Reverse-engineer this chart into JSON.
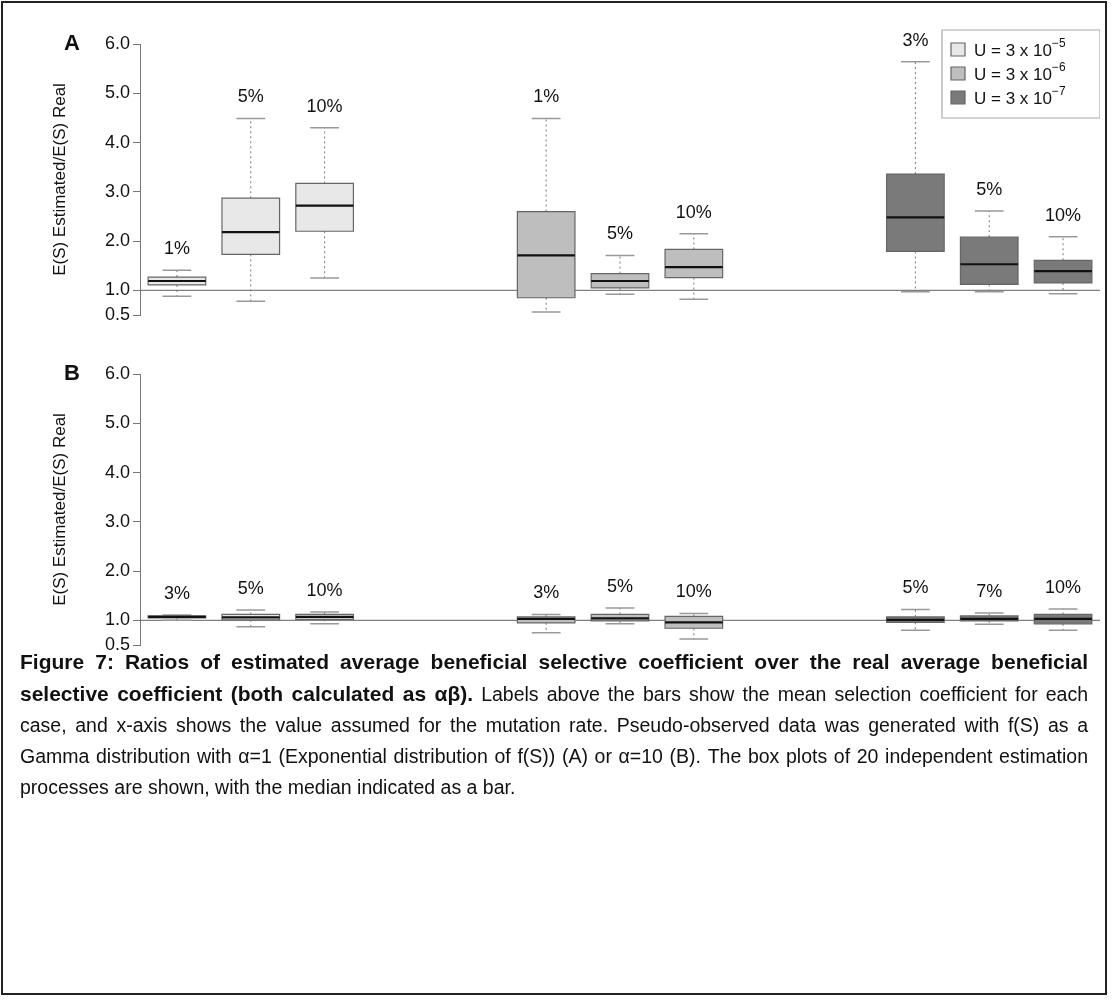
{
  "chart_data": [
    {
      "type": "box",
      "title": "A",
      "ylabel": "E(S) Estimated/E(S) Real",
      "categories": [
        null,
        null,
        null,
        null,
        null,
        null,
        null,
        null,
        null,
        null,
        null,
        null,
        null
      ],
      "ylim": [
        0.5,
        6.0
      ],
      "yticks": [
        {
          "value": 0.5,
          "label": "0.5"
        },
        {
          "value": 1,
          "label": "1.0"
        },
        {
          "value": 2,
          "label": "2.0"
        },
        {
          "value": 3,
          "label": "3.0"
        },
        {
          "value": 4,
          "label": "4.0"
        },
        {
          "value": 5,
          "label": "5.0"
        },
        {
          "value": 6,
          "label": "6.0"
        }
      ],
      "ref_lines": [
        {
          "axis": "y",
          "value": 1.0,
          "color": "#808080"
        }
      ],
      "legend": "top right",
      "series": [
        {
          "name": "U = 3 x 10$^{−5}$",
          "color": "#e8e8e8",
          "value_labels": [
            "1%",
            "5%",
            "10%",
            null,
            null,
            null,
            null,
            null,
            null,
            null,
            null,
            null,
            null
          ],
          "boxes": [
            {
              "low": 0.88,
              "q1": 1.11,
              "median": 1.19,
              "q3": 1.27,
              "high": 1.41
            },
            {
              "low": 0.78,
              "q1": 1.73,
              "median": 2.18,
              "q3": 2.87,
              "high": 4.49
            },
            {
              "low": 1.25,
              "q1": 2.2,
              "median": 2.72,
              "q3": 3.17,
              "high": 4.3
            },
            null,
            null,
            null,
            null,
            null,
            null,
            null,
            null,
            null,
            null
          ]
        },
        {
          "name": "U = 3 x 10$^{−6}$",
          "color": "#bebebe",
          "value_labels": [
            null,
            null,
            null,
            null,
            null,
            "1%",
            "5%",
            "10%",
            null,
            null,
            null,
            null,
            null
          ],
          "boxes": [
            null,
            null,
            null,
            null,
            null,
            {
              "low": 0.56,
              "q1": 0.85,
              "median": 1.71,
              "q3": 2.6,
              "high": 4.49
            },
            {
              "low": 0.92,
              "q1": 1.05,
              "median": 1.19,
              "q3": 1.34,
              "high": 1.71
            },
            {
              "low": 0.82,
              "q1": 1.26,
              "median": 1.47,
              "q3": 1.83,
              "high": 2.15
            },
            null,
            null,
            null,
            null,
            null
          ]
        },
        {
          "name": "U = 3 x 10$^{−7}$",
          "color": "#7a7a7a",
          "value_labels": [
            null,
            null,
            null,
            null,
            null,
            null,
            null,
            null,
            null,
            null,
            "3%",
            "5%",
            "10%"
          ],
          "boxes": [
            null,
            null,
            null,
            null,
            null,
            null,
            null,
            null,
            null,
            null,
            {
              "low": 0.97,
              "q1": 1.79,
              "median": 2.48,
              "q3": 3.36,
              "high": 5.64
            },
            {
              "low": 0.97,
              "q1": 1.12,
              "median": 1.53,
              "q3": 2.08,
              "high": 2.61
            },
            {
              "low": 0.93,
              "q1": 1.15,
              "median": 1.39,
              "q3": 1.61,
              "high": 2.09
            }
          ]
        }
      ]
    },
    {
      "type": "box",
      "title": "B",
      "ylabel": "E(S) Estimated/E(S) Real",
      "categories": [
        null,
        null,
        null,
        null,
        null,
        null,
        null,
        null,
        null,
        null,
        null,
        null,
        null
      ],
      "ylim": [
        0.5,
        6.0
      ],
      "yticks": [
        {
          "value": 0.5,
          "label": "0.5"
        },
        {
          "value": 1,
          "label": "1.0"
        },
        {
          "value": 2,
          "label": "2.0"
        },
        {
          "value": 3,
          "label": "3.0"
        },
        {
          "value": 4,
          "label": "4.0"
        },
        {
          "value": 5,
          "label": "5.0"
        },
        {
          "value": 6,
          "label": "6.0"
        }
      ],
      "ref_lines": [
        {
          "axis": "y",
          "value": 1.0,
          "color": "#808080"
        }
      ],
      "series": [
        {
          "color": "#e8e8e8",
          "value_labels": [
            "3%",
            "5%",
            "10%",
            null,
            null,
            null,
            null,
            null,
            null,
            null,
            null,
            null,
            null
          ],
          "boxes": [
            {
              "low": 1.0,
              "q1": 1.05,
              "median": 1.07,
              "q3": 1.09,
              "high": 1.11
            },
            {
              "low": 0.87,
              "q1": 1.01,
              "median": 1.06,
              "q3": 1.12,
              "high": 1.21
            },
            {
              "low": 0.93,
              "q1": 1.02,
              "median": 1.07,
              "q3": 1.12,
              "high": 1.17
            },
            null,
            null,
            null,
            null,
            null,
            null,
            null,
            null,
            null,
            null
          ]
        },
        {
          "color": "#bebebe",
          "value_labels": [
            null,
            null,
            null,
            null,
            null,
            "3%",
            "5%",
            "10%",
            null,
            null,
            null,
            null,
            null
          ],
          "boxes": [
            null,
            null,
            null,
            null,
            null,
            {
              "low": 0.75,
              "q1": 0.95,
              "median": 1.03,
              "q3": 1.07,
              "high": 1.12
            },
            {
              "low": 0.93,
              "q1": 0.99,
              "median": 1.04,
              "q3": 1.12,
              "high": 1.25
            },
            {
              "low": 0.62,
              "q1": 0.84,
              "median": 0.96,
              "q3": 1.08,
              "high": 1.14
            },
            null,
            null,
            null,
            null,
            null
          ]
        },
        {
          "color": "#7a7a7a",
          "value_labels": [
            null,
            null,
            null,
            null,
            null,
            null,
            null,
            null,
            null,
            null,
            "5%",
            "7%",
            "10%"
          ],
          "boxes": [
            null,
            null,
            null,
            null,
            null,
            null,
            null,
            null,
            null,
            null,
            {
              "low": 0.8,
              "q1": 0.96,
              "median": 1.01,
              "q3": 1.07,
              "high": 1.22
            },
            {
              "low": 0.92,
              "q1": 0.99,
              "median": 1.03,
              "q3": 1.09,
              "high": 1.15
            },
            {
              "low": 0.8,
              "q1": 0.93,
              "median": 1.03,
              "q3": 1.12,
              "high": 1.23
            }
          ]
        }
      ],
      "annotations": [
        "Figure 7: Ratios of estimated average beneficial selective coefficient over the real average beneficial selective coefficient (both calculated as αβ).",
        "Labels above the bars show the mean selection coefficient for each case, and x-axis shows the value assumed for the mutation rate. Pseudo-observed data was generated with f(S) as a Gamma distribution with α=1 (Exponential distribution of f(S)) (A) or α=10 (B). The box plots of 20 independent estimation processes are shown, with the median indicated as a bar."
      ]
    }
  ]
}
